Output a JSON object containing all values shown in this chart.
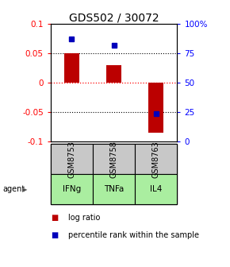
{
  "title": "GDS502 / 30072",
  "categories": [
    "IFNg",
    "TNFa",
    "IL4"
  ],
  "sample_ids": [
    "GSM8753",
    "GSM8758",
    "GSM8763"
  ],
  "log_ratios": [
    0.05,
    0.03,
    -0.085
  ],
  "percentile_ranks": [
    87,
    82,
    24
  ],
  "ylim_left": [
    -0.1,
    0.1
  ],
  "ylim_right": [
    0,
    100
  ],
  "yticks_left": [
    -0.1,
    -0.05,
    0,
    0.05,
    0.1
  ],
  "ytick_labels_left": [
    "-0.1",
    "-0.05",
    "0",
    "0.05",
    "0.1"
  ],
  "yticks_right": [
    0,
    25,
    50,
    75,
    100
  ],
  "ytick_labels_right": [
    "0",
    "25",
    "50",
    "75",
    "100%"
  ],
  "bar_color": "#bb0000",
  "dot_color": "#0000bb",
  "gray_bg": "#c8c8c8",
  "green_bg": "#aaeea0",
  "agent_label": "agent",
  "legend_bar_label": "log ratio",
  "legend_dot_label": "percentile rank within the sample",
  "title_fontsize": 10,
  "tick_fontsize": 7.5,
  "table_fontsize": 7,
  "agent_fontsize": 7,
  "legend_fontsize": 7
}
